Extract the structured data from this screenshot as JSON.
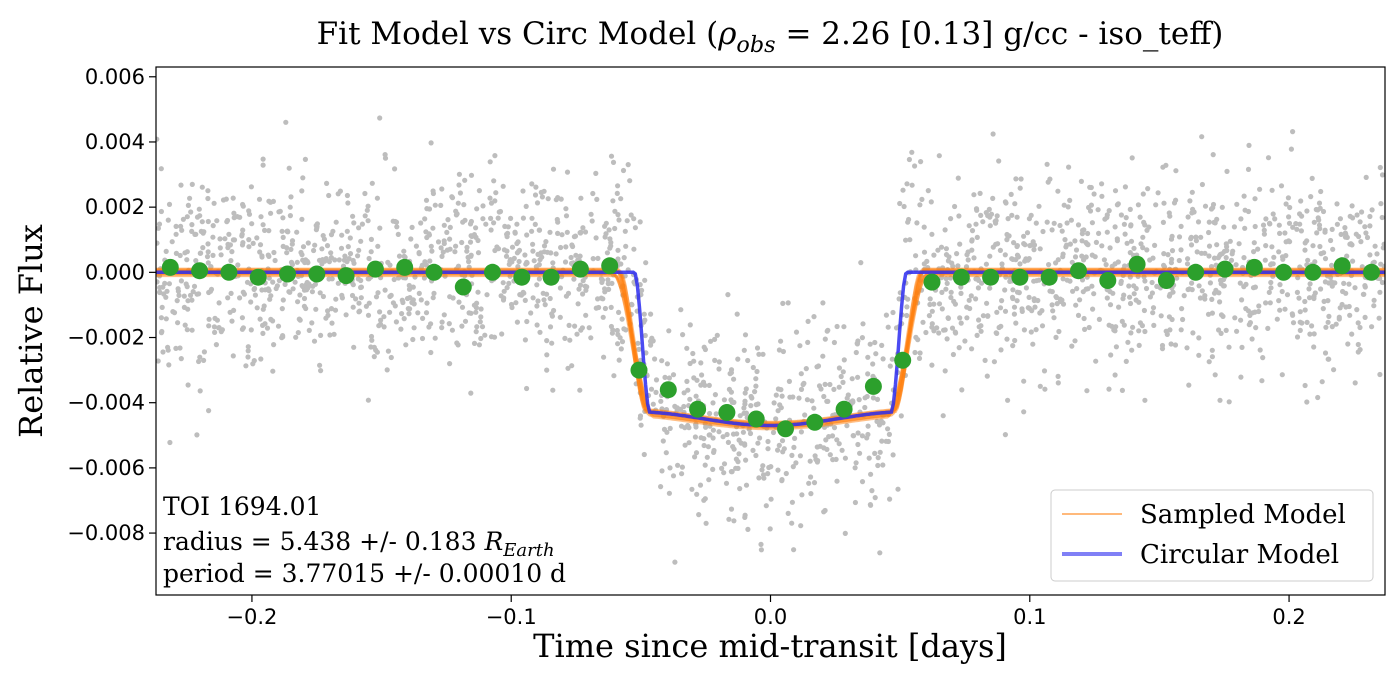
{
  "chart_data": {
    "type": "scatter",
    "title": {
      "prefix": "Fit Model vs Circ Model (",
      "rho_symbol": "ρ",
      "rho_sub": "obs",
      "suffix": " = 2.26 [0.13] g/cc - iso_teff)"
    },
    "xlabel": "Time since mid-transit [days]",
    "ylabel": "Relative Flux",
    "xlim": [
      -0.237,
      0.237
    ],
    "ylim": [
      -0.0099,
      0.0063
    ],
    "xticks": [
      {
        "value": -0.2,
        "label": "−0.2"
      },
      {
        "value": -0.1,
        "label": "−0.1"
      },
      {
        "value": 0.0,
        "label": "0.0"
      },
      {
        "value": 0.1,
        "label": "0.1"
      },
      {
        "value": 0.2,
        "label": "0.2"
      }
    ],
    "yticks": [
      {
        "value": 0.006,
        "label": "0.006"
      },
      {
        "value": 0.004,
        "label": "0.004"
      },
      {
        "value": 0.002,
        "label": "0.002"
      },
      {
        "value": 0.0,
        "label": "0.000"
      },
      {
        "value": -0.002,
        "label": "−0.002"
      },
      {
        "value": -0.004,
        "label": "−0.004"
      },
      {
        "value": -0.006,
        "label": "−0.006"
      },
      {
        "value": -0.008,
        "label": "−0.008"
      }
    ],
    "transit": {
      "depth": 0.0047,
      "circular_half_duration": 0.0525,
      "sampled_half_duration": 0.0595
    },
    "raw_points": {
      "color": "#bdbdbd",
      "count": 2400,
      "scatter_std": 0.0015
    },
    "binned": {
      "color": "#2ca02c",
      "x": [
        -0.2315,
        -0.2202,
        -0.2089,
        -0.1976,
        -0.1863,
        -0.175,
        -0.1637,
        -0.1524,
        -0.1411,
        -0.1298,
        -0.1185,
        -0.1072,
        -0.0959,
        -0.0846,
        -0.0733,
        -0.062,
        -0.0507,
        -0.0394,
        -0.0281,
        -0.0168,
        -0.0055,
        0.0058,
        0.0171,
        0.0284,
        0.0397,
        0.051,
        0.0623,
        0.0736,
        0.0849,
        0.0962,
        0.1075,
        0.1188,
        0.1301,
        0.1414,
        0.1527,
        0.164,
        0.1753,
        0.1866,
        0.1979,
        0.2092,
        0.2205,
        0.2318
      ],
      "y": [
        0.00015,
        5e-05,
        0.0,
        -0.00015,
        -5e-05,
        -5e-05,
        -0.0001,
        0.0001,
        0.00015,
        0.0,
        -0.00045,
        0.0,
        -0.00015,
        -0.00015,
        0.0001,
        0.0002,
        -0.003,
        -0.0036,
        -0.0042,
        -0.0043,
        -0.0045,
        -0.0048,
        -0.0046,
        -0.0042,
        -0.0035,
        -0.0027,
        -0.0003,
        -0.00015,
        -0.00015,
        -0.00015,
        -0.00015,
        5e-05,
        -0.00025,
        0.00025,
        -0.00025,
        0.0,
        0.0001,
        0.00015,
        0.0,
        0.0,
        0.0002,
        0.0
      ]
    },
    "legend": {
      "position": "lower-right",
      "entries": [
        {
          "label": "Sampled Model",
          "color": "#ff7f0e"
        },
        {
          "label": "Circular Model",
          "color": "#2b2bf0"
        }
      ]
    },
    "annotation": {
      "line1": "TOI 1694.01",
      "line2_prefix": "radius = 5.438 +/- 0.183 ",
      "line2_r": "R",
      "line2_sub": "Earth",
      "line3": "period = 3.77015 +/- 0.00010 d"
    },
    "grid": false
  }
}
